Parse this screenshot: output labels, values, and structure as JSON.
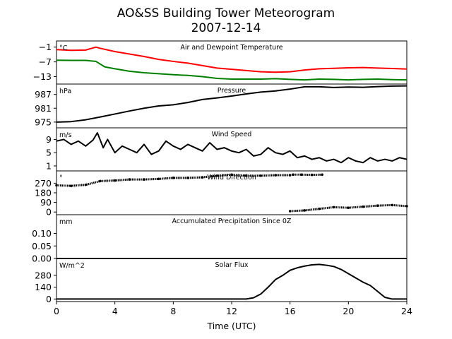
{
  "title": "AO&SS Building Tower Meteorogram",
  "subtitle": "2007-12-14",
  "xlabel": "Time (UTC)",
  "x_ticks": [
    "0",
    "4",
    "8",
    "12",
    "16",
    "20",
    "24"
  ],
  "colors": {
    "temperature": "#ff0000",
    "dewpoint": "#008000",
    "other": "#000000"
  },
  "chart_data": [
    {
      "type": "line",
      "panel_title": "Air and Dewpoint Temperature",
      "unit_label": "°C",
      "y_ticks": [
        "−1",
        "−7",
        "−13"
      ],
      "y_tick_values": [
        -1,
        -7,
        -13
      ],
      "ylim": [
        -16,
        1.5
      ],
      "xlim": [
        0,
        24
      ],
      "series": [
        {
          "key": "temperature",
          "x": [
            0,
            1,
            2,
            2.7,
            3,
            4,
            5,
            6,
            7,
            8,
            9,
            10,
            11,
            12,
            13,
            14,
            15,
            16,
            17,
            18,
            19,
            20,
            21,
            22,
            23,
            24
          ],
          "values": [
            -2.0,
            -2.3,
            -2.2,
            -1.0,
            -1.5,
            -2.8,
            -3.8,
            -4.8,
            -6.0,
            -6.8,
            -7.5,
            -8.5,
            -9.5,
            -10.0,
            -10.5,
            -11.0,
            -11.2,
            -11.0,
            -10.3,
            -9.8,
            -9.6,
            -9.4,
            -9.3,
            -9.5,
            -9.7,
            -9.9
          ]
        },
        {
          "key": "dewpoint",
          "x": [
            0,
            1,
            2,
            2.7,
            3.3,
            4,
            5,
            6,
            7,
            8,
            9,
            10,
            11,
            12,
            13,
            14,
            15,
            16,
            17,
            18,
            19,
            20,
            21,
            22,
            23,
            24
          ],
          "values": [
            -6.3,
            -6.4,
            -6.4,
            -6.8,
            -9.0,
            -9.8,
            -10.8,
            -11.4,
            -11.8,
            -12.2,
            -12.5,
            -13.0,
            -13.7,
            -14.0,
            -14.0,
            -14.0,
            -13.8,
            -14.1,
            -14.3,
            -14.0,
            -14.1,
            -14.3,
            -14.1,
            -14.0,
            -14.2,
            -14.3
          ]
        }
      ]
    },
    {
      "type": "line",
      "panel_title": "Pressure",
      "unit_label": "hPa",
      "y_ticks": [
        "987",
        "981",
        "975"
      ],
      "y_tick_values": [
        987,
        981,
        975
      ],
      "ylim": [
        972.5,
        991.5
      ],
      "xlim": [
        0,
        24
      ],
      "series": [
        {
          "key": "other",
          "x": [
            0,
            1,
            2,
            3,
            4,
            5,
            6,
            7,
            8,
            9,
            10,
            11,
            12,
            13,
            14,
            15,
            16,
            17,
            18,
            19,
            20,
            21,
            22,
            23,
            24
          ],
          "values": [
            975.0,
            975.2,
            976.0,
            977.2,
            978.5,
            979.8,
            981.0,
            982.0,
            982.5,
            983.5,
            984.8,
            985.5,
            986.3,
            987.2,
            988.0,
            988.5,
            989.3,
            990.3,
            990.3,
            990.0,
            990.2,
            990.1,
            990.4,
            990.6,
            990.7
          ]
        }
      ]
    },
    {
      "type": "line",
      "panel_title": "Wind Speed",
      "unit_label": "m/s",
      "y_ticks": [
        "9",
        "5",
        "1"
      ],
      "y_tick_values": [
        9,
        5,
        1
      ],
      "ylim": [
        -0.5,
        12.5
      ],
      "xlim": [
        0,
        24
      ],
      "series": [
        {
          "key": "other",
          "x": [
            0,
            0.5,
            1,
            1.5,
            2,
            2.5,
            2.8,
            3.2,
            3.5,
            4,
            4.5,
            5,
            5.5,
            6,
            6.5,
            7,
            7.5,
            8,
            8.5,
            9,
            9.5,
            10,
            10.5,
            11,
            11.5,
            12,
            12.5,
            13,
            13.5,
            14,
            14.5,
            15,
            15.5,
            16,
            16.5,
            17,
            17.5,
            18,
            18.5,
            19,
            19.5,
            20,
            20.5,
            21,
            21.5,
            22,
            22.5,
            23,
            23.5,
            24
          ],
          "values": [
            8.5,
            9.0,
            7.5,
            8.5,
            7.0,
            8.8,
            11.0,
            6.5,
            9.0,
            5.0,
            7.0,
            6.0,
            5.0,
            7.5,
            4.5,
            5.5,
            8.5,
            7.0,
            6.0,
            7.5,
            6.5,
            5.5,
            8.0,
            6.0,
            6.5,
            5.5,
            5.0,
            6.0,
            4.0,
            4.5,
            6.5,
            5.0,
            4.5,
            5.5,
            3.5,
            4.0,
            3.0,
            3.5,
            2.5,
            3.0,
            2.0,
            3.5,
            2.5,
            2.0,
            3.5,
            2.5,
            3.0,
            2.5,
            3.5,
            3.0
          ]
        }
      ]
    },
    {
      "type": "scatter",
      "panel_title": "Wind Direction",
      "unit_label": "°",
      "y_ticks": [
        "270",
        "180",
        "90",
        "0"
      ],
      "y_tick_values": [
        270,
        180,
        90,
        0
      ],
      "ylim": [
        -25,
        385
      ],
      "xlim": [
        0,
        24
      ],
      "series": [
        {
          "key": "other",
          "x": [
            0,
            1,
            2,
            3,
            4,
            5,
            6,
            7,
            8,
            9,
            10,
            11,
            12,
            13,
            14,
            15,
            16
          ],
          "values": [
            250,
            245,
            255,
            290,
            295,
            305,
            305,
            310,
            320,
            320,
            325,
            340,
            350,
            340,
            340,
            345,
            345
          ]
        },
        {
          "key": "other",
          "x": [
            16.2,
            16.8,
            17.5,
            18.2
          ],
          "values": [
            350,
            350,
            348,
            350
          ]
        },
        {
          "key": "other",
          "x": [
            16,
            17,
            18,
            19,
            20,
            21,
            22,
            23,
            24
          ],
          "values": [
            8,
            15,
            30,
            45,
            40,
            50,
            60,
            65,
            55
          ]
        }
      ]
    },
    {
      "type": "line",
      "panel_title": "Accumulated Precipitation Since 0Z",
      "unit_label": "mm",
      "y_ticks": [
        "0.10",
        "0.05",
        "0.00"
      ],
      "y_tick_values": [
        0.1,
        0.05,
        0
      ],
      "ylim": [
        0,
        0.175
      ],
      "xlim": [
        0,
        24
      ],
      "series": [
        {
          "key": "other",
          "x": [
            0,
            24
          ],
          "values": [
            0,
            0
          ]
        }
      ]
    },
    {
      "type": "line",
      "panel_title": "Solar Flux",
      "unit_label": "W/m^2",
      "y_ticks": [
        "280",
        "140",
        "0"
      ],
      "y_tick_values": [
        280,
        140,
        0
      ],
      "ylim": [
        -30,
        480
      ],
      "xlim": [
        0,
        24
      ],
      "series": [
        {
          "key": "other",
          "x": [
            0,
            13,
            13.5,
            14,
            14.5,
            15,
            15.5,
            16,
            16.5,
            17,
            17.5,
            18,
            18.5,
            19,
            19.5,
            20,
            20.5,
            21,
            21.5,
            22,
            22.5,
            23,
            24
          ],
          "values": [
            0,
            0,
            15,
            60,
            140,
            230,
            280,
            340,
            370,
            390,
            405,
            410,
            400,
            385,
            350,
            300,
            250,
            200,
            160,
            90,
            20,
            0,
            0
          ]
        }
      ]
    }
  ]
}
